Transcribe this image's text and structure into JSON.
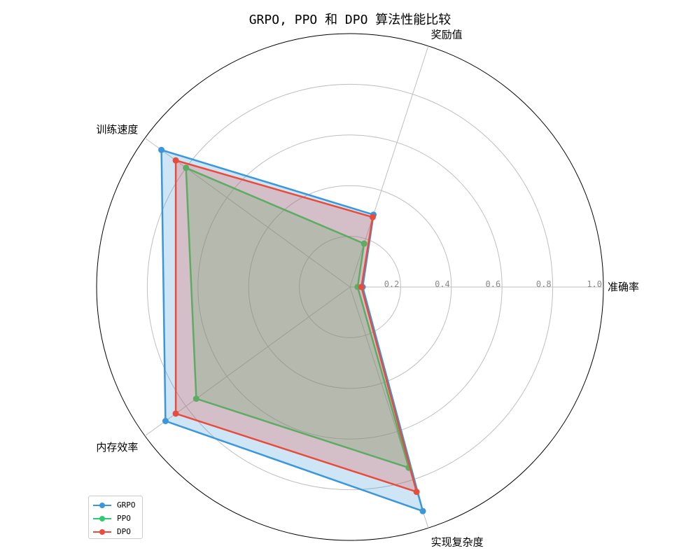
{
  "chart_data": {
    "type": "radar",
    "title": "GRPO, PPO 和 DPO 算法性能比较",
    "axes": [
      "准确率",
      "奖励值",
      "训练速度",
      "内存效率",
      "实现复杂度"
    ],
    "rlim": [
      0,
      1.0
    ],
    "rticks": [
      0.2,
      0.4,
      0.6,
      0.8,
      1.0
    ],
    "rtick_labels": [
      "0.2",
      "0.4",
      "0.6",
      "0.8",
      "1.0"
    ],
    "grid": true,
    "legend_position": "lower-left",
    "series": [
      {
        "name": "GRPO",
        "color": "#3a97db",
        "fill": true,
        "values": [
          0.05,
          0.3,
          0.92,
          0.9,
          0.93
        ]
      },
      {
        "name": "PPO",
        "color": "#2ecc71",
        "fill": true,
        "values": [
          0.03,
          0.18,
          0.8,
          0.75,
          0.75
        ]
      },
      {
        "name": "DPO",
        "color": "#e74c3c",
        "fill": true,
        "values": [
          0.045,
          0.29,
          0.85,
          0.85,
          0.85
        ]
      }
    ]
  }
}
